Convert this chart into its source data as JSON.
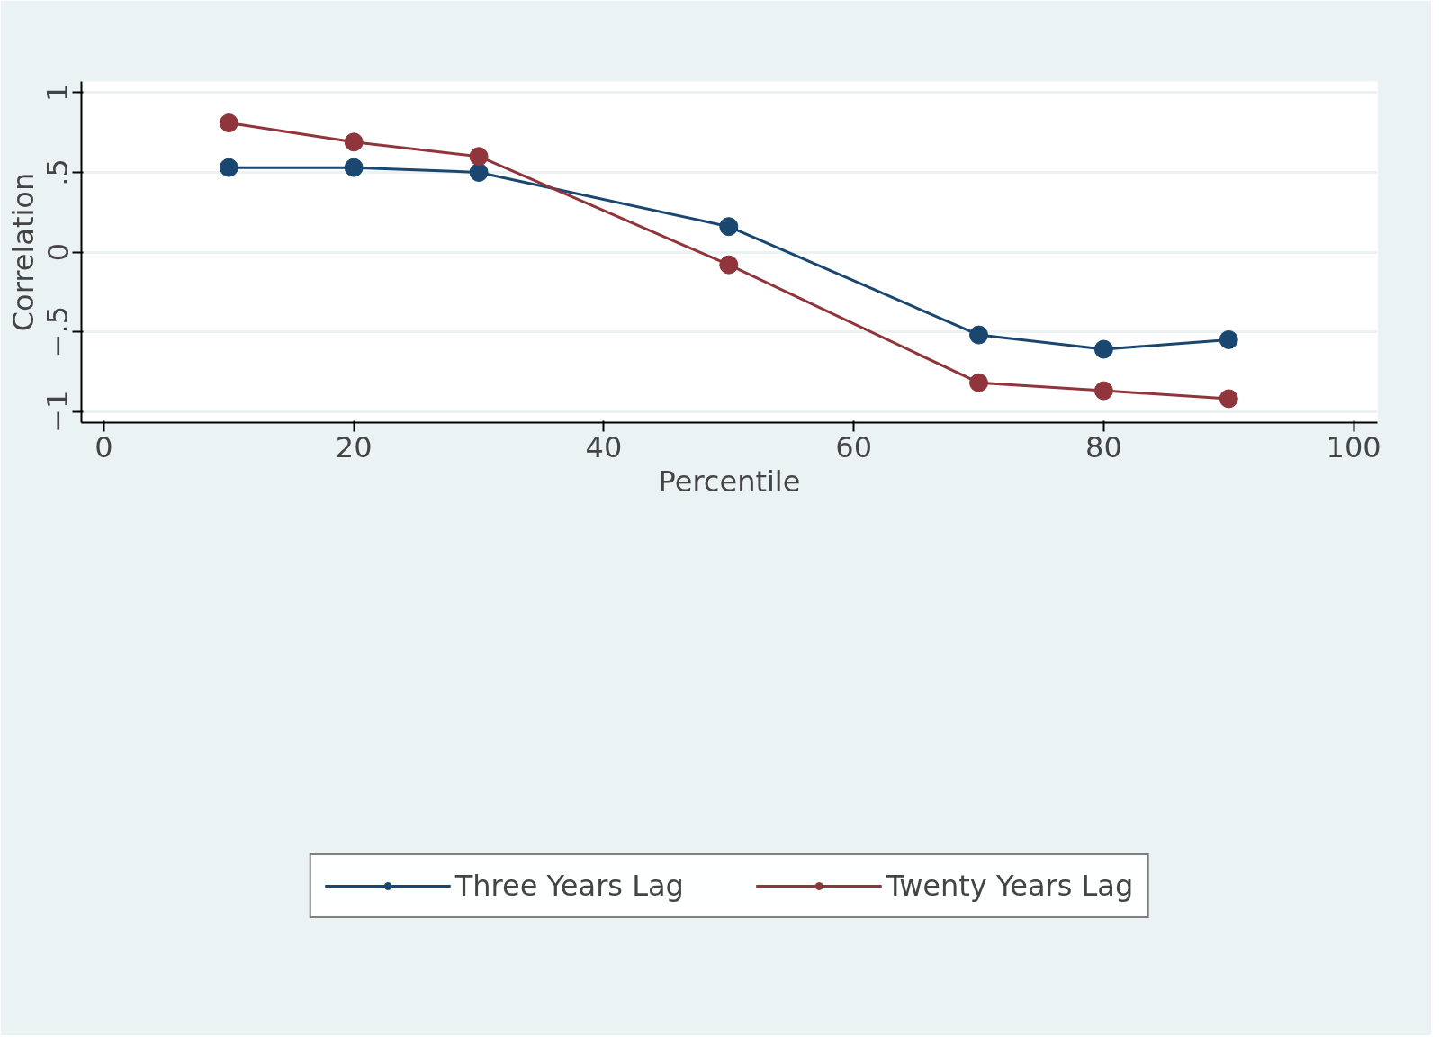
{
  "chart_data": {
    "type": "line",
    "xlabel": "Percentile",
    "ylabel": "Correlation",
    "x": [
      10,
      20,
      30,
      50,
      70,
      80,
      90
    ],
    "series": [
      {
        "name": "Three Years Lag",
        "color": "#1a476f",
        "values": [
          0.53,
          0.53,
          0.5,
          0.16,
          -0.52,
          -0.61,
          -0.55
        ]
      },
      {
        "name": "Twenty Years Lag",
        "color": "#90353b",
        "values": [
          0.81,
          0.69,
          0.6,
          -0.08,
          -0.82,
          -0.87,
          -0.92
        ]
      }
    ],
    "xlim": [
      -1.8,
      101.9
    ],
    "ylim": [
      -1.07,
      1.07
    ],
    "xticks": [
      0,
      20,
      40,
      60,
      80,
      100
    ],
    "yticks": [
      {
        "value": -1,
        "label": "−1"
      },
      {
        "value": -0.5,
        "label": "−.5"
      },
      {
        "value": 0,
        "label": "0"
      },
      {
        "value": 0.5,
        "label": ".5"
      },
      {
        "value": 1,
        "label": "1"
      }
    ],
    "grid": "y",
    "legend": "bottom",
    "marker": "circle",
    "line_style": "solid"
  }
}
